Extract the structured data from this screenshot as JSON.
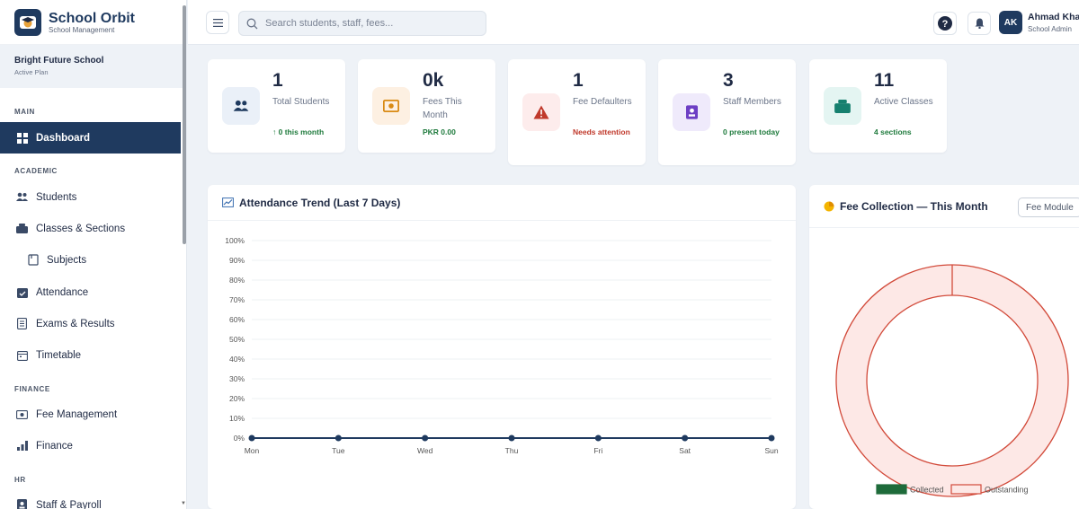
{
  "brand": {
    "title": "School Orbit",
    "subtitle": "School Management"
  },
  "school": {
    "name": "Bright Future School",
    "plan": "Active Plan"
  },
  "nav": {
    "main_label": "MAIN",
    "academic_label": "ACADEMIC",
    "finance_label": "FINANCE",
    "hr_label": "HR",
    "items": {
      "dashboard": "Dashboard",
      "students": "Students",
      "classes": "Classes & Sections",
      "subjects": "Subjects",
      "attendance": "Attendance",
      "exams": "Exams & Results",
      "timetable": "Timetable",
      "fee": "Fee Management",
      "finance": "Finance",
      "staff": "Staff & Payroll"
    }
  },
  "topbar": {
    "search_placeholder": "Search students, staff, fees...",
    "user_initials": "AK",
    "user_name": "Ahmad Kha",
    "user_role": "School Admin"
  },
  "stats": [
    {
      "value": "1",
      "label": "Total Students",
      "sub": "↑ 0 this month",
      "sub_color": "#1e7a3c",
      "icon": "users-icon",
      "icon_bg": "#eaf0f8",
      "icon_color": "#1f3a5f"
    },
    {
      "value": "0k",
      "label": "Fees This Month",
      "sub": "PKR 0.00",
      "sub_color": "#1e7a3c",
      "icon": "money-icon",
      "icon_bg": "#fdf0e2",
      "icon_color": "#d98a14"
    },
    {
      "value": "1",
      "label": "Fee Defaulters",
      "sub": "Needs attention",
      "sub_color": "#c0392b",
      "icon": "warning-icon",
      "icon_bg": "#fdecec",
      "icon_color": "#c0392b"
    },
    {
      "value": "3",
      "label": "Staff Members",
      "sub": "0 present today",
      "sub_color": "#1e7a3c",
      "icon": "id-badge-icon",
      "icon_bg": "#efeafb",
      "icon_color": "#6d3fc4"
    },
    {
      "value": "11",
      "label": "Active Classes",
      "sub": "4 sections",
      "sub_color": "#1e7a3c",
      "icon": "classes-icon",
      "icon_bg": "#e4f5f2",
      "icon_color": "#16806f"
    }
  ],
  "attendance_panel": {
    "title": "Attendance Trend (Last 7 Days)"
  },
  "fee_panel": {
    "title": "Fee Collection — This Month",
    "button": "Fee Module"
  },
  "chart_data": [
    {
      "type": "line",
      "title": "Attendance Trend (Last 7 Days)",
      "categories": [
        "Mon",
        "Tue",
        "Wed",
        "Thu",
        "Fri",
        "Sat",
        "Sun"
      ],
      "series": [
        {
          "values": [
            0,
            0,
            0,
            0,
            0,
            0,
            0
          ]
        }
      ],
      "ylim": [
        0,
        100
      ],
      "yticks": [
        "0%",
        "10%",
        "20%",
        "30%",
        "40%",
        "50%",
        "60%",
        "70%",
        "80%",
        "90%",
        "100%"
      ],
      "grid": true,
      "colors": {
        "line": "#1f3a5f"
      }
    },
    {
      "type": "pie",
      "title": "Fee Collection — This Month",
      "categories": [
        "Collected",
        "Outstanding"
      ],
      "values": [
        0,
        1
      ],
      "legend": "bottom",
      "colors": {
        "Collected": "#1e6b3a",
        "Outstanding": "#fde8e6",
        "Outstanding_border": "#d24a3a"
      }
    }
  ]
}
